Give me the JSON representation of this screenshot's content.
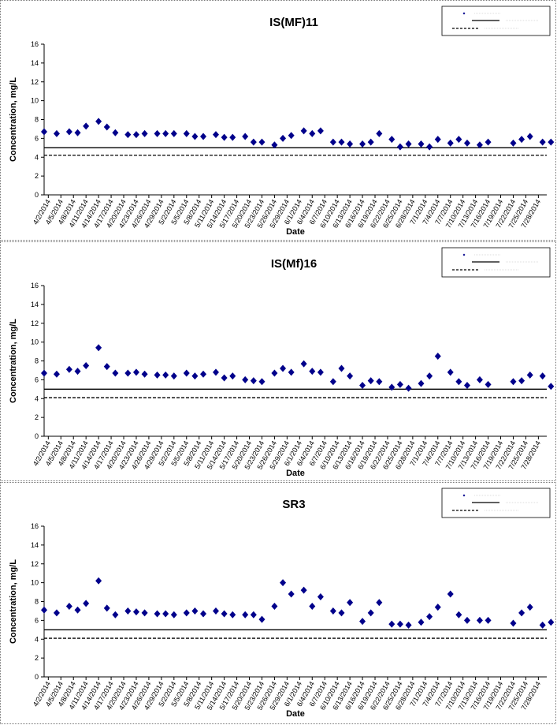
{
  "chart_data": [
    {
      "type": "scatter",
      "title": "IS(MF)11",
      "xlabel": "Date",
      "ylabel": "Concentration, mg/L",
      "ylim": [
        0,
        16
      ],
      "yticks": [
        0,
        2,
        4,
        6,
        8,
        10,
        12,
        14,
        16
      ],
      "xlim": [
        "4/1/2014",
        "7/30/2014"
      ],
      "xticks": [
        "4/2/2014",
        "4/5/2014",
        "4/8/2014",
        "4/11/2014",
        "4/14/2014",
        "4/17/2014",
        "4/20/2014",
        "4/23/2014",
        "4/26/2014",
        "4/29/2014",
        "5/2/2014",
        "5/5/2014",
        "5/8/2014",
        "5/11/2014",
        "5/14/2014",
        "5/17/2014",
        "5/20/2014",
        "5/23/2014",
        "5/26/2014",
        "5/29/2014",
        "6/1/2014",
        "6/4/2014",
        "6/7/2014",
        "6/10/2014",
        "6/13/2014",
        "6/16/2014",
        "6/19/2014",
        "6/22/2014",
        "6/25/2014",
        "6/28/2014",
        "7/1/2014",
        "7/4/2014",
        "7/7/2014",
        "7/10/2014",
        "7/13/2014",
        "7/16/2014",
        "7/19/2014",
        "7/22/2014",
        "7/25/2014",
        "7/28/2014"
      ],
      "grid": false,
      "legend": {
        "placement": "top-right"
      },
      "colors": {
        "marker": "#00008B",
        "line": "#000000"
      },
      "reference_lines": [
        {
          "value": 5.0,
          "style": "solid"
        },
        {
          "value": 4.2,
          "style": "dashed"
        }
      ],
      "series": [
        {
          "marker": "diamond",
          "points": [
            [
              "4/1/2014",
              6.7
            ],
            [
              "4/4/2014",
              6.5
            ],
            [
              "4/7/2014",
              6.7
            ],
            [
              "4/9/2014",
              6.6
            ],
            [
              "4/11/2014",
              7.3
            ],
            [
              "4/14/2014",
              7.8
            ],
            [
              "4/16/2014",
              7.2
            ],
            [
              "4/18/2014",
              6.6
            ],
            [
              "4/21/2014",
              6.4
            ],
            [
              "4/23/2014",
              6.4
            ],
            [
              "4/25/2014",
              6.5
            ],
            [
              "4/28/2014",
              6.5
            ],
            [
              "4/30/2014",
              6.5
            ],
            [
              "5/2/2014",
              6.5
            ],
            [
              "5/5/2014",
              6.5
            ],
            [
              "5/7/2014",
              6.2
            ],
            [
              "5/9/2014",
              6.2
            ],
            [
              "5/12/2014",
              6.4
            ],
            [
              "5/14/2014",
              6.1
            ],
            [
              "5/16/2014",
              6.1
            ],
            [
              "5/19/2014",
              6.2
            ],
            [
              "5/21/2014",
              5.6
            ],
            [
              "5/23/2014",
              5.6
            ],
            [
              "5/26/2014",
              5.3
            ],
            [
              "5/28/2014",
              6.0
            ],
            [
              "5/30/2014",
              6.3
            ],
            [
              "6/2/2014",
              6.8
            ],
            [
              "6/4/2014",
              6.5
            ],
            [
              "6/6/2014",
              6.8
            ],
            [
              "6/9/2014",
              5.6
            ],
            [
              "6/11/2014",
              5.6
            ],
            [
              "6/13/2014",
              5.4
            ],
            [
              "6/16/2014",
              5.4
            ],
            [
              "6/18/2014",
              5.6
            ],
            [
              "6/20/2014",
              6.5
            ],
            [
              "6/23/2014",
              5.9
            ],
            [
              "6/25/2014",
              5.1
            ],
            [
              "6/27/2014",
              5.4
            ],
            [
              "6/30/2014",
              5.4
            ],
            [
              "7/2/2014",
              5.1
            ],
            [
              "7/4/2014",
              5.9
            ],
            [
              "7/7/2014",
              5.5
            ],
            [
              "7/9/2014",
              5.9
            ],
            [
              "7/11/2014",
              5.5
            ],
            [
              "7/14/2014",
              5.3
            ],
            [
              "7/16/2014",
              5.6
            ],
            [
              "7/22/2014",
              5.5
            ],
            [
              "7/24/2014",
              5.9
            ],
            [
              "7/26/2014",
              6.2
            ],
            [
              "7/29/2014",
              5.6
            ],
            [
              "7/31/2014",
              5.6
            ]
          ]
        }
      ]
    },
    {
      "type": "scatter",
      "title": "IS(Mf)16",
      "xlabel": "Date",
      "ylabel": "Concentration, mg/L",
      "ylim": [
        0,
        16
      ],
      "yticks": [
        0,
        2,
        4,
        6,
        8,
        10,
        12,
        14,
        16
      ],
      "xlim": [
        "4/1/2014",
        "7/30/2014"
      ],
      "xticks": [
        "4/2/2014",
        "4/5/2014",
        "4/8/2014",
        "4/11/2014",
        "4/14/2014",
        "4/17/2014",
        "4/20/2014",
        "4/23/2014",
        "4/26/2014",
        "4/29/2014",
        "5/2/2014",
        "5/5/2014",
        "5/8/2014",
        "5/11/2014",
        "5/14/2014",
        "5/17/2014",
        "5/20/2014",
        "5/23/2014",
        "5/26/2014",
        "5/29/2014",
        "6/1/2014",
        "6/4/2014",
        "6/7/2014",
        "6/10/2014",
        "6/13/2014",
        "6/16/2014",
        "6/19/2014",
        "6/22/2014",
        "6/25/2014",
        "6/28/2014",
        "7/1/2014",
        "7/4/2014",
        "7/7/2014",
        "7/10/2014",
        "7/13/2014",
        "7/16/2014",
        "7/19/2014",
        "7/22/2014",
        "7/25/2014",
        "7/28/2014"
      ],
      "grid": false,
      "legend": {
        "placement": "top-right"
      },
      "colors": {
        "marker": "#00008B",
        "line": "#000000"
      },
      "reference_lines": [
        {
          "value": 5.0,
          "style": "solid"
        },
        {
          "value": 4.1,
          "style": "dashed"
        }
      ],
      "series": [
        {
          "marker": "diamond",
          "points": [
            [
              "4/1/2014",
              6.7
            ],
            [
              "4/4/2014",
              6.6
            ],
            [
              "4/7/2014",
              7.1
            ],
            [
              "4/9/2014",
              6.9
            ],
            [
              "4/11/2014",
              7.5
            ],
            [
              "4/14/2014",
              9.4
            ],
            [
              "4/16/2014",
              7.4
            ],
            [
              "4/18/2014",
              6.7
            ],
            [
              "4/21/2014",
              6.7
            ],
            [
              "4/23/2014",
              6.8
            ],
            [
              "4/25/2014",
              6.6
            ],
            [
              "4/28/2014",
              6.5
            ],
            [
              "4/30/2014",
              6.5
            ],
            [
              "5/2/2014",
              6.4
            ],
            [
              "5/5/2014",
              6.7
            ],
            [
              "5/7/2014",
              6.4
            ],
            [
              "5/9/2014",
              6.6
            ],
            [
              "5/12/2014",
              6.8
            ],
            [
              "5/14/2014",
              6.2
            ],
            [
              "5/16/2014",
              6.4
            ],
            [
              "5/19/2014",
              6.0
            ],
            [
              "5/21/2014",
              5.9
            ],
            [
              "5/23/2014",
              5.8
            ],
            [
              "5/26/2014",
              6.7
            ],
            [
              "5/28/2014",
              7.2
            ],
            [
              "5/30/2014",
              6.8
            ],
            [
              "6/2/2014",
              7.7
            ],
            [
              "6/4/2014",
              6.9
            ],
            [
              "6/6/2014",
              6.8
            ],
            [
              "6/9/2014",
              5.8
            ],
            [
              "6/11/2014",
              7.2
            ],
            [
              "6/13/2014",
              6.4
            ],
            [
              "6/16/2014",
              5.4
            ],
            [
              "6/18/2014",
              5.9
            ],
            [
              "6/20/2014",
              5.8
            ],
            [
              "6/23/2014",
              5.2
            ],
            [
              "6/25/2014",
              5.5
            ],
            [
              "6/27/2014",
              5.1
            ],
            [
              "6/30/2014",
              5.6
            ],
            [
              "7/2/2014",
              6.4
            ],
            [
              "7/4/2014",
              8.5
            ],
            [
              "7/7/2014",
              6.8
            ],
            [
              "7/9/2014",
              5.8
            ],
            [
              "7/11/2014",
              5.4
            ],
            [
              "7/14/2014",
              6.0
            ],
            [
              "7/16/2014",
              5.5
            ],
            [
              "7/22/2014",
              5.8
            ],
            [
              "7/24/2014",
              5.9
            ],
            [
              "7/26/2014",
              6.5
            ],
            [
              "7/29/2014",
              6.4
            ],
            [
              "7/31/2014",
              5.3
            ]
          ]
        }
      ]
    },
    {
      "type": "scatter",
      "title": "SR3",
      "xlabel": "Date",
      "ylabel": "Concentration, mg/L",
      "ylim": [
        0,
        16
      ],
      "yticks": [
        0,
        2,
        4,
        6,
        8,
        10,
        12,
        14,
        16
      ],
      "xlim": [
        "4/1/2014",
        "7/30/2014"
      ],
      "xticks": [
        "4/2/2014",
        "4/5/2014",
        "4/8/2014",
        "4/11/2014",
        "4/14/2014",
        "4/17/2014",
        "4/20/2014",
        "4/23/2014",
        "4/26/2014",
        "4/29/2014",
        "5/2/2014",
        "5/5/2014",
        "5/8/2014",
        "5/11/2014",
        "5/14/2014",
        "5/17/2014",
        "5/20/2014",
        "5/23/2014",
        "5/26/2014",
        "5/29/2014",
        "6/1/2014",
        "6/4/2014",
        "6/7/2014",
        "6/10/2014",
        "6/13/2014",
        "6/16/2014",
        "6/19/2014",
        "6/22/2014",
        "6/25/2014",
        "6/28/2014",
        "7/1/2014",
        "7/4/2014",
        "7/7/2014",
        "7/10/2014",
        "7/13/2014",
        "7/16/2014",
        "7/19/2014",
        "7/22/2014",
        "7/25/2014",
        "7/28/2014"
      ],
      "grid": false,
      "legend": {
        "placement": "top-right"
      },
      "colors": {
        "marker": "#00008B",
        "line": "#000000"
      },
      "reference_lines": [
        {
          "value": 5.0,
          "style": "solid"
        },
        {
          "value": 4.1,
          "style": "dashed"
        }
      ],
      "series": [
        {
          "marker": "diamond",
          "points": [
            [
              "4/1/2014",
              7.1
            ],
            [
              "4/4/2014",
              6.8
            ],
            [
              "4/7/2014",
              7.5
            ],
            [
              "4/9/2014",
              7.1
            ],
            [
              "4/11/2014",
              7.8
            ],
            [
              "4/14/2014",
              10.2
            ],
            [
              "4/16/2014",
              7.3
            ],
            [
              "4/18/2014",
              6.6
            ],
            [
              "4/21/2014",
              7.0
            ],
            [
              "4/23/2014",
              6.9
            ],
            [
              "4/25/2014",
              6.8
            ],
            [
              "4/28/2014",
              6.7
            ],
            [
              "4/30/2014",
              6.7
            ],
            [
              "5/2/2014",
              6.6
            ],
            [
              "5/5/2014",
              6.8
            ],
            [
              "5/7/2014",
              7.0
            ],
            [
              "5/9/2014",
              6.7
            ],
            [
              "5/12/2014",
              7.0
            ],
            [
              "5/14/2014",
              6.7
            ],
            [
              "5/16/2014",
              6.6
            ],
            [
              "5/19/2014",
              6.6
            ],
            [
              "5/21/2014",
              6.6
            ],
            [
              "5/23/2014",
              6.1
            ],
            [
              "5/26/2014",
              7.5
            ],
            [
              "5/28/2014",
              10.0
            ],
            [
              "5/30/2014",
              8.8
            ],
            [
              "6/2/2014",
              9.2
            ],
            [
              "6/4/2014",
              7.5
            ],
            [
              "6/6/2014",
              8.5
            ],
            [
              "6/9/2014",
              7.0
            ],
            [
              "6/11/2014",
              6.8
            ],
            [
              "6/13/2014",
              7.9
            ],
            [
              "6/16/2014",
              5.9
            ],
            [
              "6/18/2014",
              6.8
            ],
            [
              "6/20/2014",
              7.9
            ],
            [
              "6/23/2014",
              5.6
            ],
            [
              "6/25/2014",
              5.6
            ],
            [
              "6/27/2014",
              5.5
            ],
            [
              "6/30/2014",
              5.8
            ],
            [
              "7/2/2014",
              6.4
            ],
            [
              "7/4/2014",
              7.4
            ],
            [
              "7/7/2014",
              8.8
            ],
            [
              "7/9/2014",
              6.6
            ],
            [
              "7/11/2014",
              6.0
            ],
            [
              "7/14/2014",
              6.0
            ],
            [
              "7/16/2014",
              6.0
            ],
            [
              "7/22/2014",
              5.7
            ],
            [
              "7/24/2014",
              6.8
            ],
            [
              "7/26/2014",
              7.4
            ],
            [
              "7/29/2014",
              5.5
            ],
            [
              "7/31/2014",
              5.8
            ]
          ]
        }
      ]
    }
  ]
}
